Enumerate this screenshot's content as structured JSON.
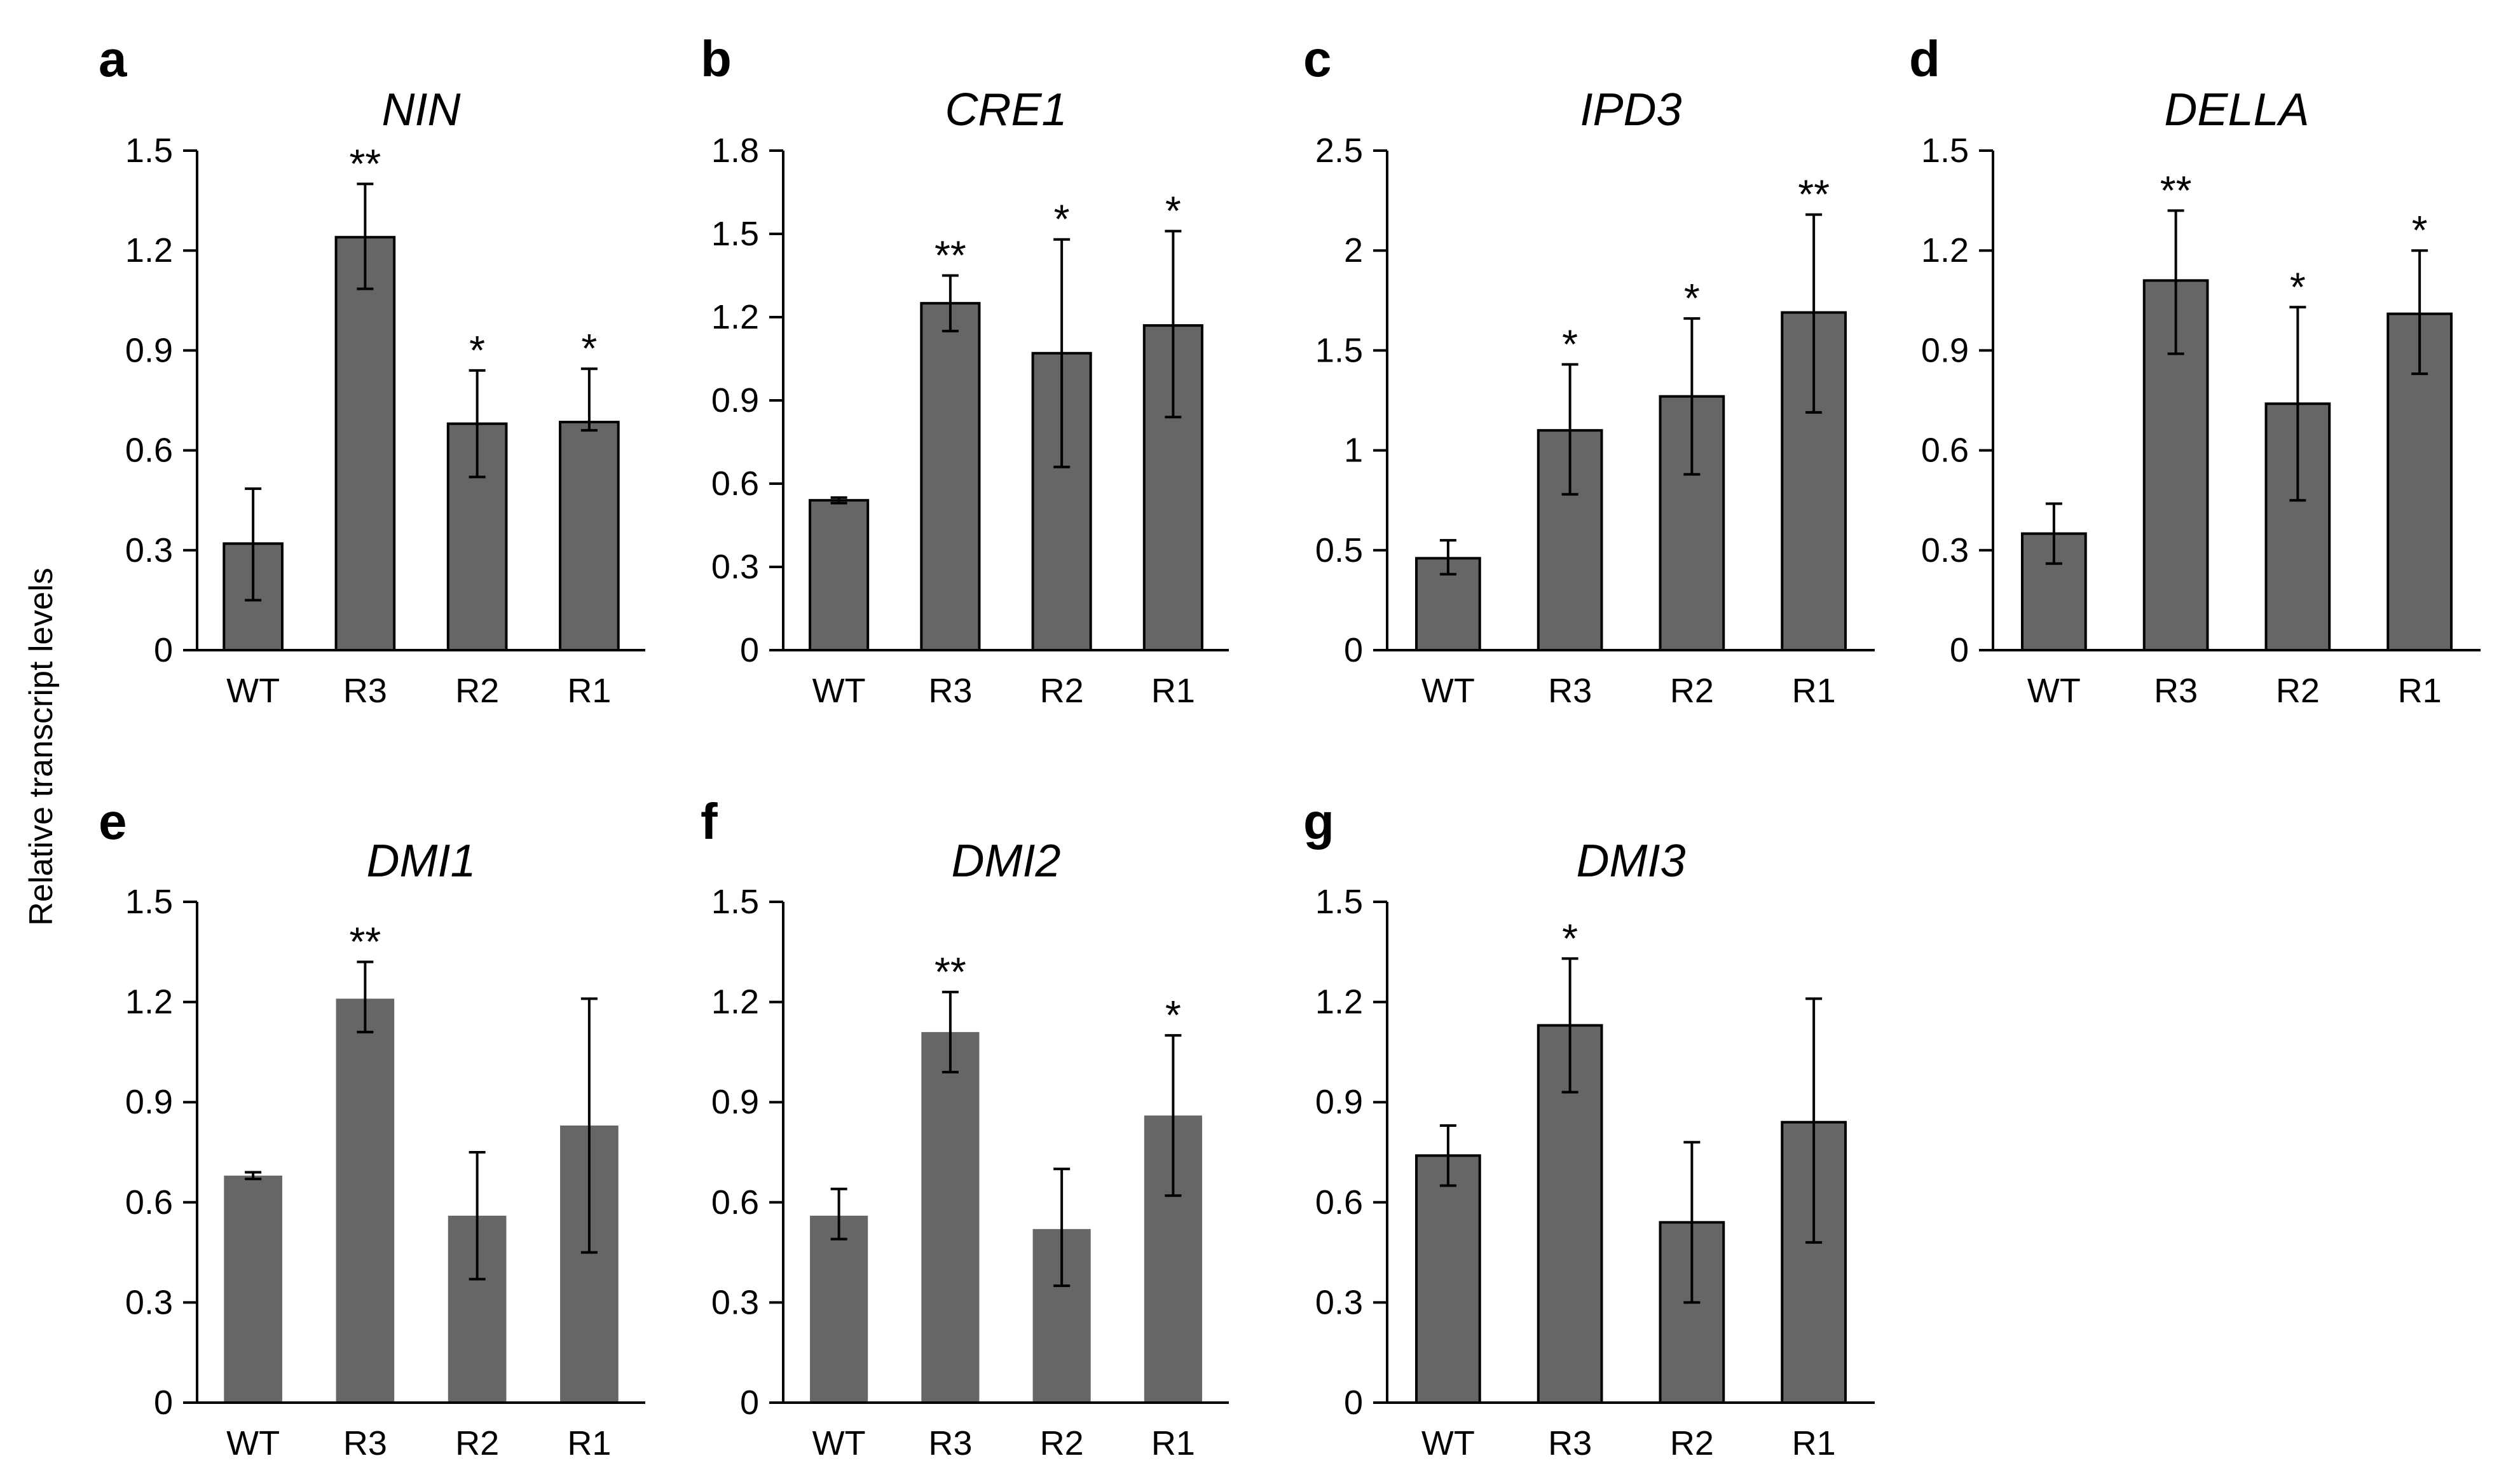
{
  "figure": {
    "y_axis_label": "Relative transcript levels",
    "bar_color": "#666666",
    "axis_color": "#000000"
  },
  "chart_data": [
    {
      "panel": "a",
      "title": "NIN",
      "type": "bar",
      "categories": [
        "WT",
        "R3",
        "R2",
        "R1"
      ],
      "values": [
        0.32,
        1.24,
        0.68,
        0.685
      ],
      "errors": [
        [
          0.15,
          0.485
        ],
        [
          1.085,
          1.4
        ],
        [
          0.52,
          0.84
        ],
        [
          0.66,
          0.845
        ]
      ],
      "significance": [
        "",
        "**",
        "*",
        "*"
      ],
      "ylim": [
        0,
        1.5
      ],
      "yticks": [
        0,
        0.3,
        0.6,
        0.9,
        1.2,
        1.5
      ],
      "ytick_labels": [
        "0",
        "0.3",
        "0.6",
        "0.9",
        "1.2",
        "1.5"
      ],
      "bordered": true
    },
    {
      "panel": "b",
      "title": "CRE1",
      "type": "bar",
      "categories": [
        "WT",
        "R3",
        "R2",
        "R1"
      ],
      "values": [
        0.54,
        1.25,
        1.07,
        1.17
      ],
      "errors": [
        [
          0.53,
          0.55
        ],
        [
          1.15,
          1.35
        ],
        [
          0.66,
          1.48
        ],
        [
          0.84,
          1.51
        ]
      ],
      "significance": [
        "",
        "**",
        "*",
        "*"
      ],
      "ylim": [
        0,
        1.8
      ],
      "yticks": [
        0,
        0.3,
        0.6,
        0.9,
        1.2,
        1.5,
        1.8
      ],
      "ytick_labels": [
        "0",
        "0.3",
        "0.6",
        "0.9",
        "1.2",
        "1.5",
        "1.8"
      ],
      "bordered": true
    },
    {
      "panel": "c",
      "title": "IPD3",
      "type": "bar",
      "categories": [
        "WT",
        "R3",
        "R2",
        "R1"
      ],
      "values": [
        0.46,
        1.1,
        1.27,
        1.69
      ],
      "errors": [
        [
          0.38,
          0.55
        ],
        [
          0.78,
          1.43
        ],
        [
          0.88,
          1.66
        ],
        [
          1.19,
          2.18
        ]
      ],
      "significance": [
        "",
        "*",
        "*",
        "**"
      ],
      "ylim": [
        0,
        2.5
      ],
      "yticks": [
        0,
        0.5,
        1,
        1.5,
        2,
        2.5
      ],
      "ytick_labels": [
        "0",
        "0.5",
        "1",
        "1.5",
        "2",
        "2.5"
      ],
      "bordered": true
    },
    {
      "panel": "d",
      "title": "DELLA",
      "type": "bar",
      "categories": [
        "WT",
        "R3",
        "R2",
        "R1"
      ],
      "values": [
        0.35,
        1.11,
        0.74,
        1.01
      ],
      "errors": [
        [
          0.26,
          0.44
        ],
        [
          0.89,
          1.32
        ],
        [
          0.45,
          1.03
        ],
        [
          0.83,
          1.2
        ]
      ],
      "significance": [
        "",
        "**",
        "*",
        "*"
      ],
      "ylim": [
        0,
        1.5
      ],
      "yticks": [
        0,
        0.3,
        0.6,
        0.9,
        1.2,
        1.5
      ],
      "ytick_labels": [
        "0",
        "0.3",
        "0.6",
        "0.9",
        "1.2",
        "1.5"
      ],
      "bordered": true
    },
    {
      "panel": "e",
      "title": "DMI1",
      "type": "bar",
      "categories": [
        "WT",
        "R3",
        "R2",
        "R1"
      ],
      "values": [
        0.68,
        1.21,
        0.56,
        0.83
      ],
      "errors": [
        [
          0.67,
          0.69
        ],
        [
          1.11,
          1.32
        ],
        [
          0.37,
          0.75
        ],
        [
          0.45,
          1.21
        ]
      ],
      "significance": [
        "",
        "**",
        "",
        ""
      ],
      "ylim": [
        0,
        1.5
      ],
      "yticks": [
        0,
        0.3,
        0.6,
        0.9,
        1.2,
        1.5
      ],
      "ytick_labels": [
        "0",
        "0.3",
        "0.6",
        "0.9",
        "1.2",
        "1.5"
      ],
      "bordered": false
    },
    {
      "panel": "f",
      "title": "DMI2",
      "type": "bar",
      "categories": [
        "WT",
        "R3",
        "R2",
        "R1"
      ],
      "values": [
        0.56,
        1.11,
        0.52,
        0.86
      ],
      "errors": [
        [
          0.49,
          0.64
        ],
        [
          0.99,
          1.23
        ],
        [
          0.35,
          0.7
        ],
        [
          0.62,
          1.1
        ]
      ],
      "significance": [
        "",
        "**",
        "",
        "*"
      ],
      "ylim": [
        0,
        1.5
      ],
      "yticks": [
        0,
        0.3,
        0.6,
        0.9,
        1.2,
        1.5
      ],
      "ytick_labels": [
        "0",
        "0.3",
        "0.6",
        "0.9",
        "1.2",
        "1.5"
      ],
      "bordered": false
    },
    {
      "panel": "g",
      "title": "DMI3",
      "type": "bar",
      "categories": [
        "WT",
        "R3",
        "R2",
        "R1"
      ],
      "values": [
        0.74,
        1.13,
        0.54,
        0.84
      ],
      "errors": [
        [
          0.65,
          0.83
        ],
        [
          0.93,
          1.33
        ],
        [
          0.3,
          0.78
        ],
        [
          0.48,
          1.21
        ]
      ],
      "significance": [
        "",
        "*",
        "",
        ""
      ],
      "ylim": [
        0,
        1.5
      ],
      "yticks": [
        0,
        0.3,
        0.6,
        0.9,
        1.2,
        1.5
      ],
      "ytick_labels": [
        "0",
        "0.3",
        "0.6",
        "0.9",
        "1.2",
        "1.5"
      ],
      "bordered": true
    }
  ]
}
